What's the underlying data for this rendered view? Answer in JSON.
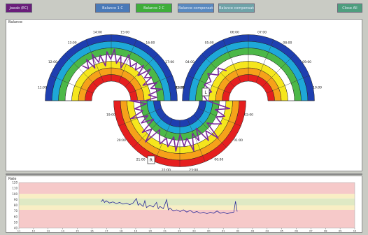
{
  "toolbar": {
    "buttons": [
      {
        "label": "Jawab (EC)",
        "color": "#6a1e7a"
      },
      {
        "label": "Balance 1 C",
        "color": "#4a7ab8"
      },
      {
        "label": "Balance 2 C",
        "color": "#3fae3a"
      },
      {
        "label": "Balance compensated",
        "color": "#5a8ac0"
      },
      {
        "label": "Balance compensated Test",
        "color": "#6fa3a8"
      },
      {
        "label": "Close All",
        "color": "#4e9e7e"
      }
    ]
  },
  "balance_panel": {
    "title": "Balance",
    "band_colors": [
      "#e51f1f",
      "#f6a11a",
      "#f5e61d",
      "#ffffff",
      "#4cb848",
      "#1ea8d8",
      "#1e3fb0"
    ],
    "trace_color": "#7a2a9a",
    "markers": [
      "L",
      "R"
    ],
    "time_labels": [
      "11:00",
      "12:00",
      "13:00",
      "14:00",
      "15:00",
      "16:00",
      "17:00",
      "18:00",
      "19:00",
      "20:00",
      "21:00",
      "22:00",
      "23:00",
      "00:00",
      "01:00",
      "02:00",
      "03:00",
      "04:00",
      "05:00",
      "06:00",
      "07:00",
      "08:00",
      "09:00",
      "10:00"
    ]
  },
  "rate_panel": {
    "title": "Rate",
    "y_ticks": [
      "120",
      "110",
      "100",
      "90",
      "80",
      "70",
      "60",
      "50",
      "40"
    ],
    "x_ticks": [
      "11",
      "12",
      "13",
      "14",
      "15",
      "16",
      "17",
      "18",
      "19",
      "20",
      "21",
      "22",
      "23",
      "00",
      "01",
      "02",
      "03",
      "04",
      "05",
      "06",
      "07",
      "08",
      "09",
      "10"
    ],
    "trace_color": "#2a2a9a"
  },
  "chart_data": {
    "type": "line",
    "title": "Rate",
    "xlabel": "",
    "ylabel": "",
    "ylim": [
      40,
      120
    ],
    "bands": [
      {
        "from": 100,
        "to": 120,
        "color": "#f6c9c9"
      },
      {
        "from": 92,
        "to": 100,
        "color": "#f9eec4"
      },
      {
        "from": 80,
        "to": 92,
        "color": "#dfe9c4"
      },
      {
        "from": 72,
        "to": 80,
        "color": "#f9eec4"
      },
      {
        "from": 40,
        "to": 72,
        "color": "#f6c9c9"
      }
    ],
    "series": [
      {
        "values": [
          [
            0.245,
            86
          ],
          [
            0.25,
            90
          ],
          [
            0.255,
            85
          ],
          [
            0.26,
            88
          ],
          [
            0.27,
            84
          ],
          [
            0.28,
            86
          ],
          [
            0.29,
            83
          ],
          [
            0.3,
            85
          ],
          [
            0.31,
            82
          ],
          [
            0.32,
            84
          ],
          [
            0.33,
            81
          ],
          [
            0.34,
            84
          ],
          [
            0.35,
            92
          ],
          [
            0.355,
            80
          ],
          [
            0.36,
            83
          ],
          [
            0.37,
            78
          ],
          [
            0.375,
            88
          ],
          [
            0.38,
            76
          ],
          [
            0.39,
            80
          ],
          [
            0.4,
            77
          ],
          [
            0.41,
            85
          ],
          [
            0.415,
            74
          ],
          [
            0.42,
            78
          ],
          [
            0.43,
            74
          ],
          [
            0.44,
            90
          ],
          [
            0.445,
            72
          ],
          [
            0.45,
            75
          ],
          [
            0.46,
            70
          ],
          [
            0.47,
            72
          ],
          [
            0.48,
            69
          ],
          [
            0.49,
            72
          ],
          [
            0.5,
            68
          ],
          [
            0.51,
            71
          ],
          [
            0.52,
            67
          ],
          [
            0.53,
            69
          ],
          [
            0.54,
            66
          ],
          [
            0.55,
            68
          ],
          [
            0.56,
            65
          ],
          [
            0.57,
            68
          ],
          [
            0.58,
            66
          ],
          [
            0.59,
            70
          ],
          [
            0.6,
            66
          ],
          [
            0.61,
            68
          ],
          [
            0.62,
            65
          ],
          [
            0.63,
            67
          ],
          [
            0.64,
            68
          ],
          [
            0.645,
            87
          ],
          [
            0.65,
            69
          ]
        ]
      }
    ]
  }
}
